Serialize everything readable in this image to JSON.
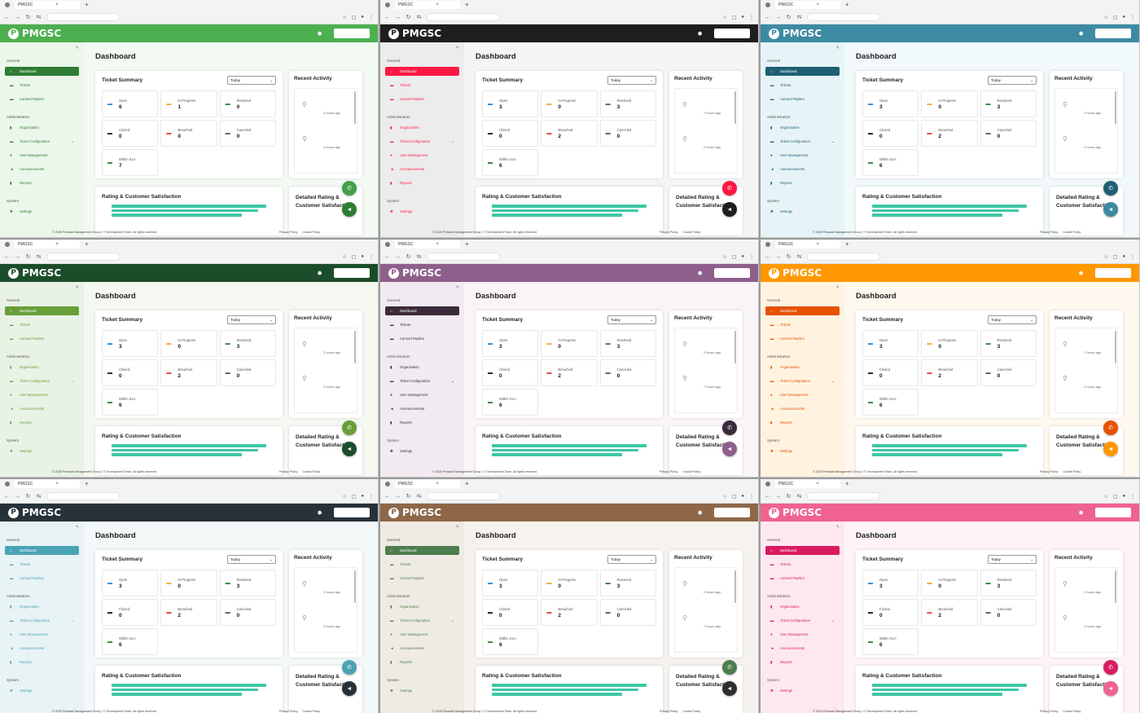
{
  "browser": {
    "tab_title": "PMGSC",
    "close_glyph": "×",
    "new_tab_glyph": "+"
  },
  "app": {
    "brand": "PMGSC",
    "page_title": "Dashboard"
  },
  "sidebar": {
    "sections": [
      {
        "label": "General",
        "items": [
          {
            "label": "Dashboard",
            "icon": "home-icon",
            "active": true
          },
          {
            "label": "Tickets",
            "icon": "ticket-icon"
          },
          {
            "label": "Canned Replies",
            "icon": "reply-icon"
          }
        ]
      },
      {
        "label": "Administration",
        "items": [
          {
            "label": "Organization",
            "icon": "building-icon"
          },
          {
            "label": "Ticket Configuration",
            "icon": "config-icon",
            "expandable": true
          },
          {
            "label": "User Management",
            "icon": "users-icon"
          },
          {
            "label": "Announcements",
            "icon": "megaphone-icon"
          },
          {
            "label": "Reports",
            "icon": "report-icon"
          }
        ]
      },
      {
        "label": "System",
        "items": [
          {
            "label": "Settings",
            "icon": "gear-icon"
          }
        ]
      }
    ]
  },
  "ticket_summary": {
    "title": "Ticket Summary",
    "period": "Today"
  },
  "stat_labels": [
    "Open",
    "In-Progress",
    "Resolved",
    "Closed",
    "Breached",
    "Canceled",
    "Within SLA"
  ],
  "stat_colors": [
    "#1e88e5",
    "#f5a623",
    "#2e7d32",
    "#111111",
    "#e53935",
    "#555555",
    "#2e7d32"
  ],
  "recent_activity": {
    "title": "Recent Activity"
  },
  "rating": {
    "title": "Rating & Customer Satisfaction",
    "bar_fractions": [
      0.95,
      0.9,
      0.8
    ]
  },
  "detail_rating": {
    "title": "Detailed Rating & Customer Satisfaction"
  },
  "footer": {
    "copyright": "© 2026 Pinnacle Management Group | IT Development Team. All rights reserved.",
    "privacy": "Privacy Policy",
    "cookie": "Cookie Policy"
  },
  "themes": [
    {
      "name": "green",
      "header": "#4caf50",
      "sidebar_bg": "#eaf7ea",
      "main_bg": "#f3faf3",
      "accent": "#2e7d32",
      "fab1": "#43a047",
      "fab2": "#2e7d32",
      "stats": [
        6,
        1,
        0,
        0,
        0,
        0,
        7
      ],
      "times": [
        "4 hours ago",
        "4 hours ago"
      ]
    },
    {
      "name": "red",
      "header": "#1e1e1e",
      "sidebar_bg": "#ececec",
      "main_bg": "#f5f5f5",
      "accent": "#ff1744",
      "fab1": "#ff1744",
      "fab2": "#1e1e1e",
      "stats": [
        3,
        0,
        3,
        0,
        2,
        0,
        6
      ],
      "times": [
        "7 hours ago",
        "2 hours ago"
      ]
    },
    {
      "name": "blue",
      "header": "#3d8aa3",
      "sidebar_bg": "#e6f4f7",
      "main_bg": "#f2f9fb",
      "accent": "#1f5f73",
      "fab1": "#1f5f73",
      "fab2": "#3d8aa3",
      "stats": [
        3,
        0,
        3,
        0,
        2,
        0,
        6
      ],
      "times": [
        "2 hours ago",
        "2 hours ago"
      ]
    },
    {
      "name": "forest",
      "header": "#1b4d2a",
      "sidebar_bg": "#e9f3e5",
      "main_bg": "#f4f8f1",
      "accent": "#689f38",
      "fab1": "#689f38",
      "fab2": "#1b4d2a",
      "stats": [
        3,
        0,
        3,
        0,
        2,
        0,
        6
      ],
      "times": [
        "2 hours ago",
        "2 hours ago"
      ]
    },
    {
      "name": "purple",
      "header": "#8e5f8b",
      "sidebar_bg": "#f1ebf1",
      "main_bg": "#f8f4f8",
      "accent": "#3b2a3a",
      "fab1": "#3b2a3a",
      "fab2": "#8e5f8b",
      "stats": [
        3,
        0,
        3,
        0,
        2,
        0,
        6
      ],
      "times": [
        "2 hours ago",
        "7 hours ago"
      ]
    },
    {
      "name": "orange",
      "header": "#ff9800",
      "sidebar_bg": "#fff3e0",
      "main_bg": "#fff8ef",
      "accent": "#e65100",
      "fab1": "#e65100",
      "fab2": "#ff9800",
      "stats": [
        3,
        0,
        3,
        0,
        2,
        0,
        6
      ],
      "times": [
        "7 hours ago",
        "2 hours ago"
      ]
    },
    {
      "name": "navy",
      "header": "#263238",
      "sidebar_bg": "#e8f3f5",
      "main_bg": "#f3f8f9",
      "accent": "#4ba3b6",
      "fab1": "#4ba3b6",
      "fab2": "#263238",
      "stats": [
        3,
        0,
        3,
        0,
        2,
        0,
        6
      ],
      "times": [
        "2 hours ago",
        "2 hours ago"
      ]
    },
    {
      "name": "brown",
      "header": "#8d6748",
      "sidebar_bg": "#efebe4",
      "main_bg": "#f6f3ee",
      "accent": "#4e7d4e",
      "fab1": "#4e7d4e",
      "fab2": "#2f2f2f",
      "stats": [
        3,
        0,
        3,
        0,
        2,
        0,
        6
      ],
      "times": [
        "2 hours ago",
        "7 hours ago"
      ]
    },
    {
      "name": "pink",
      "header": "#f0628f",
      "sidebar_bg": "#fde8ef",
      "main_bg": "#fef4f7",
      "accent": "#d81b60",
      "fab1": "#d81b60",
      "fab2": "#f0628f",
      "stats": [
        3,
        0,
        3,
        0,
        2,
        0,
        6
      ],
      "times": [
        "2 hours ago",
        "2 hours ago"
      ]
    }
  ]
}
